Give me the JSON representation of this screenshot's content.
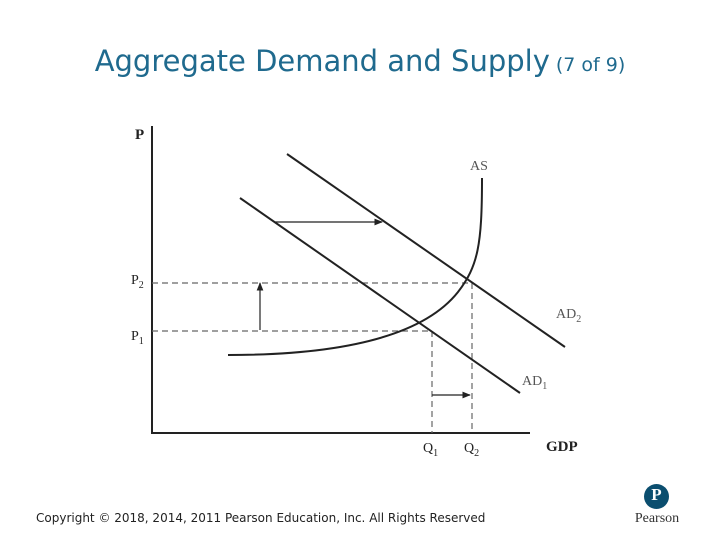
{
  "slide": {
    "title": "Aggregate Demand and Supply",
    "title_suffix": "(7 of 9)",
    "copyright": "Copyright © 2018, 2014, 2011 Pearson Education, Inc. All Rights Reserved"
  },
  "diagram": {
    "y_axis_label": "P",
    "x_axis_label": "GDP",
    "price_labels": [
      {
        "base": "P",
        "sub": "2"
      },
      {
        "base": "P",
        "sub": "1"
      }
    ],
    "quantity_labels": [
      {
        "base": "Q",
        "sub": "1"
      },
      {
        "base": "Q",
        "sub": "2"
      }
    ],
    "curves": {
      "as": {
        "base": "AS",
        "sub": ""
      },
      "ad2": {
        "base": "AD",
        "sub": "2"
      },
      "ad1": {
        "base": "AD",
        "sub": "1"
      }
    }
  },
  "logo": {
    "mark": "P",
    "wordmark": "Pearson"
  },
  "colors": {
    "title": "#1f6a8e",
    "logo": "#0b4e6f"
  }
}
